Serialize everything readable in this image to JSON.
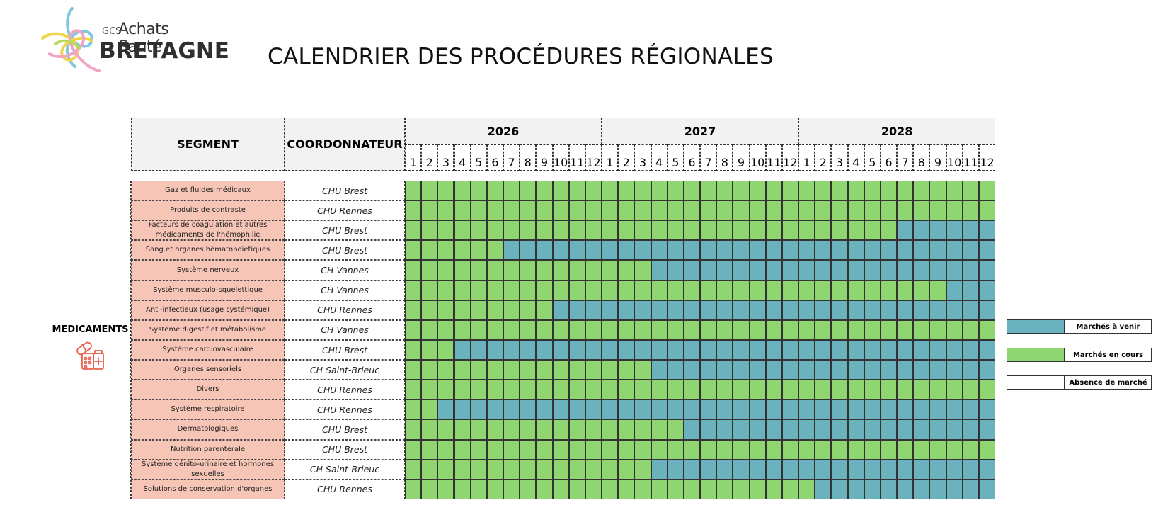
{
  "header": {
    "logo_small": "GCS",
    "logo_main": "Achats Santé",
    "logo_big": "BRETAGNE",
    "title": "CALENDRIER DES PROCÉDURES RÉGIONALES"
  },
  "table": {
    "segment_header": "SEGMENT",
    "coordinator_header": "COORDONNATEUR",
    "years": [
      "2026",
      "2027",
      "2028"
    ],
    "months": [
      "1",
      "2",
      "3",
      "4",
      "5",
      "6",
      "7",
      "8",
      "9",
      "10",
      "11",
      "12"
    ],
    "group": "MEDICAMENTS",
    "group_icon": "medicines-icon",
    "rows": [
      {
        "segment": "Gaz et fluides médicaux",
        "coordinator": "CHU Brest",
        "blue_from_month": null
      },
      {
        "segment": "Produits de contraste",
        "coordinator": "CHU Rennes",
        "blue_from_month": null
      },
      {
        "segment": "Facteurs de coagulation et autres médicaments de l'hémophilie",
        "coordinator": "CHU Brest",
        "blue_from_month": 31
      },
      {
        "segment": "Sang et organes hématopoïétiques",
        "coordinator": "CHU Brest",
        "blue_from_month": 7
      },
      {
        "segment": "Système nerveux",
        "coordinator": "CH Vannes",
        "blue_from_month": 16
      },
      {
        "segment": "Système musculo-squelettique",
        "coordinator": "CH Vannes",
        "blue_from_month": 34
      },
      {
        "segment": "Anti-infectieux (usage systémique)",
        "coordinator": "CHU Rennes",
        "blue_from_month": 10
      },
      {
        "segment": "Système digestif et métabolisme",
        "coordinator": "CH Vannes",
        "blue_from_month": null
      },
      {
        "segment": "Système cardiovasculaire",
        "coordinator": "CHU Brest",
        "blue_from_month": 4
      },
      {
        "segment": "Organes sensoriels",
        "coordinator": "CH Saint-Brieuc",
        "blue_from_month": 16
      },
      {
        "segment": "Divers",
        "coordinator": "CHU Rennes",
        "blue_from_month": null
      },
      {
        "segment": "Système respiratoire",
        "coordinator": "CHU Rennes",
        "blue_from_month": 3
      },
      {
        "segment": "Dermatologiques",
        "coordinator": "CHU Brest",
        "blue_from_month": 18
      },
      {
        "segment": "Nutrition parentérale",
        "coordinator": "CHU Brest",
        "blue_from_month": null
      },
      {
        "segment": "Système génito-urinaire et hormones sexuelles",
        "coordinator": "CH Saint-Brieuc",
        "blue_from_month": 16
      },
      {
        "segment": "Solutions de conservation d'organes",
        "coordinator": "CHU Rennes",
        "blue_from_month": 26
      }
    ]
  },
  "legend": [
    {
      "label": "Marchés à venir",
      "color": "#6bb2bf"
    },
    {
      "label": "Marchés en cours",
      "color": "#8fd672"
    },
    {
      "label": "Absence de marché",
      "color": "#ffffff"
    }
  ],
  "colors": {
    "green": "#8fd672",
    "blue": "#6bb2bf",
    "segment_bg": "#f7c5b6",
    "header_bg": "#f2f2f2"
  }
}
